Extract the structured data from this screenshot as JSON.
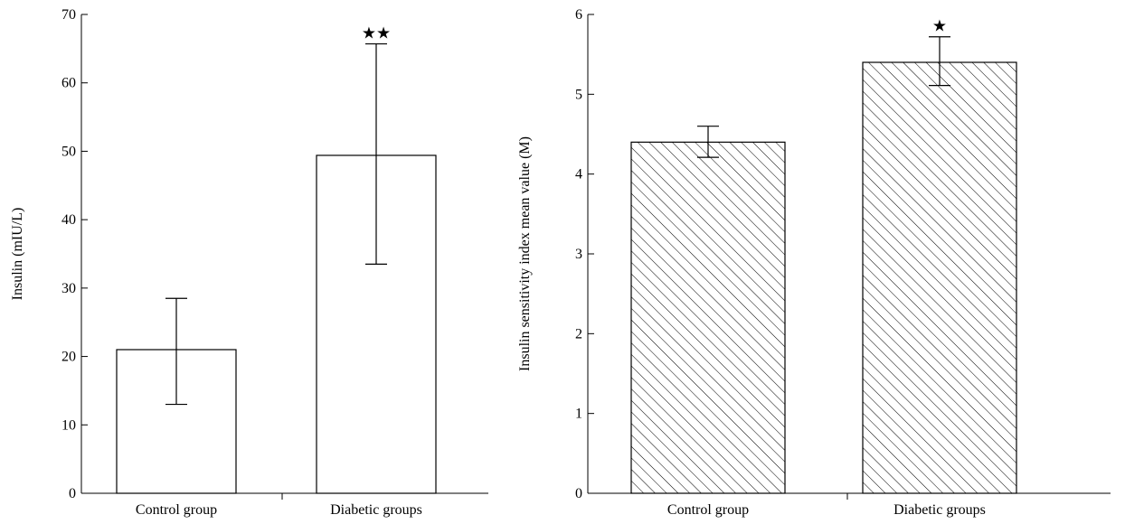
{
  "chart_data": [
    {
      "type": "bar",
      "categories": [
        "Control group",
        "Diabetic groups"
      ],
      "values": [
        21.0,
        49.4
      ],
      "error_high": [
        28.5,
        65.7
      ],
      "error_low": [
        13.0,
        33.5
      ],
      "annotations": [
        "",
        "★★"
      ],
      "ylabel": "Insulin (mIU/L)",
      "xlabel": "",
      "ylim": [
        0,
        70
      ],
      "yticks": [
        0,
        10,
        20,
        30,
        40,
        50,
        60,
        70
      ],
      "bar_fill": "none",
      "grid": false,
      "legend": "none"
    },
    {
      "type": "bar",
      "categories": [
        "Control group",
        "Diabetic groups"
      ],
      "values": [
        4.4,
        5.4
      ],
      "error_high": [
        4.6,
        5.72
      ],
      "error_low": [
        4.21,
        5.11
      ],
      "annotations": [
        "",
        "★"
      ],
      "ylabel": "Insulin sensitivity index mean value (M)",
      "xlabel": "",
      "ylim": [
        0,
        6
      ],
      "yticks": [
        0,
        1,
        2,
        3,
        4,
        5,
        6
      ],
      "bar_fill": "diagonal-hatch",
      "grid": false,
      "legend": "none"
    }
  ]
}
